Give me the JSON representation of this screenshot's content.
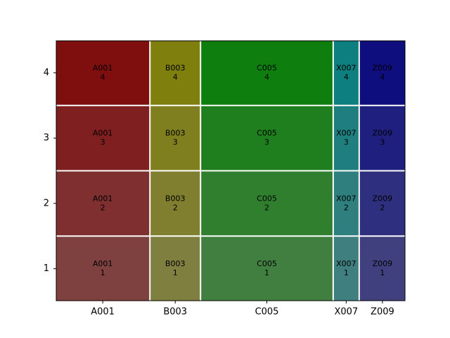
{
  "chart_data": {
    "type": "mosaic",
    "categories": [
      "A001",
      "B003",
      "C005",
      "X007",
      "Z009"
    ],
    "series": [
      {
        "name": "1",
        "values": [
          6.8,
          3.6,
          9.6,
          1.8,
          3.3
        ],
        "colors": [
          "#7f4040",
          "#7f7f40",
          "#407f40",
          "#407f7f",
          "#40407f"
        ]
      },
      {
        "name": "2",
        "values": [
          6.8,
          3.6,
          9.6,
          1.8,
          3.3
        ],
        "colors": [
          "#7f2f2f",
          "#7f7f2f",
          "#2f7f2f",
          "#2f7f7f",
          "#2f2f7f"
        ]
      },
      {
        "name": "3",
        "values": [
          6.8,
          3.6,
          9.6,
          1.8,
          3.3
        ],
        "colors": [
          "#7f1f1f",
          "#7f7f1f",
          "#1f7f1f",
          "#1f7f7f",
          "#1f1f7f"
        ]
      },
      {
        "name": "4",
        "values": [
          6.8,
          3.6,
          9.6,
          1.8,
          3.3
        ],
        "colors": [
          "#7f0e0e",
          "#7f7f0e",
          "#0e7f0e",
          "#0e7f7f",
          "#0e0e7f"
        ]
      }
    ]
  }
}
